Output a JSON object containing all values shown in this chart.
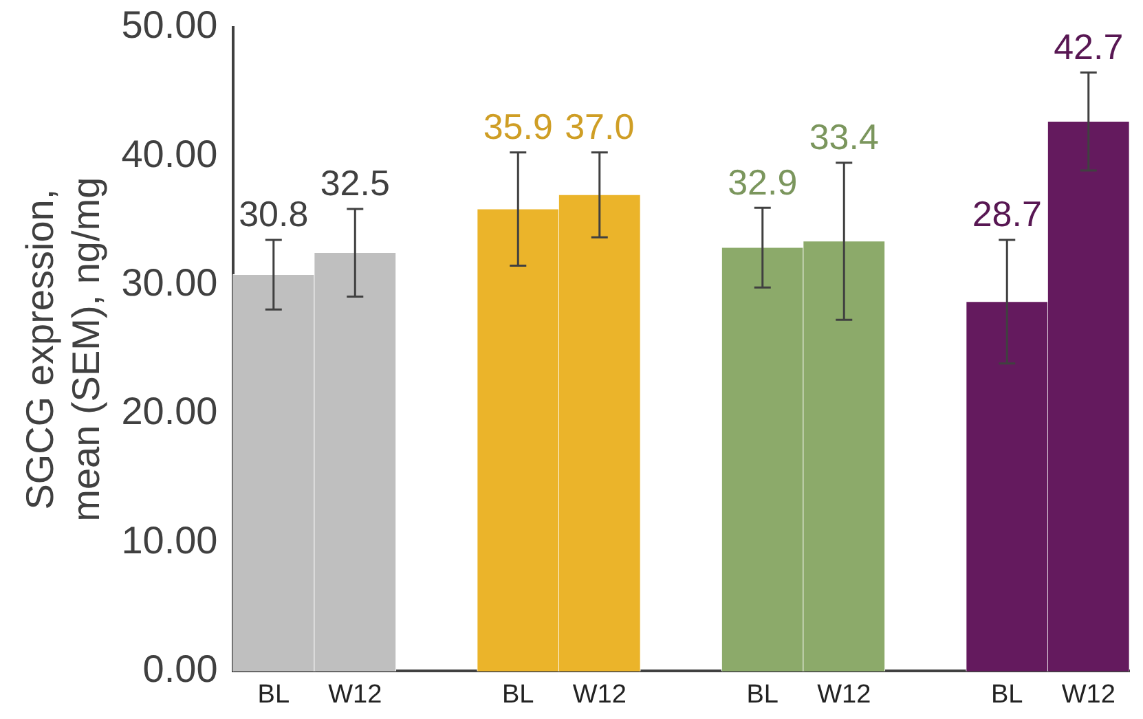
{
  "chart_data": {
    "type": "bar",
    "ylabel": "SGCG expression, mean (SEM), ng/mg",
    "categories": [
      "BL",
      "W12",
      null,
      "BL",
      "W12",
      null,
      "BL",
      "W12",
      null,
      "BL",
      "W12"
    ],
    "values": [
      30.8,
      32.5,
      null,
      35.9,
      37.0,
      null,
      32.9,
      33.4,
      null,
      28.7,
      42.7
    ],
    "colors": [
      "#bfbfbf",
      "#bfbfbf",
      null,
      "#ebb42a",
      "#ebb42a",
      null,
      "#8caa6a",
      "#8caa6a",
      null,
      "#641a5e",
      "#641a5e"
    ],
    "errors": [
      2.7,
      3.4,
      null,
      4.4,
      3.3,
      null,
      3.1,
      6.1,
      null,
      4.8,
      3.8
    ],
    "value_labels": [
      "30.8",
      "32.5",
      null,
      "35.9",
      "37.0",
      null,
      "32.9",
      "33.4",
      null,
      "28.7",
      "42.7"
    ],
    "ylim": [
      0,
      50
    ],
    "yticks": [
      {
        "value": 0,
        "label": "0.00"
      },
      {
        "value": 10,
        "label": "10.00"
      },
      {
        "value": 20,
        "label": "20.00"
      },
      {
        "value": 30,
        "label": "30.00"
      },
      {
        "value": 40,
        "label": "40.00"
      },
      {
        "value": 50,
        "label": "50.00"
      }
    ],
    "grid": false,
    "legend": false
  }
}
